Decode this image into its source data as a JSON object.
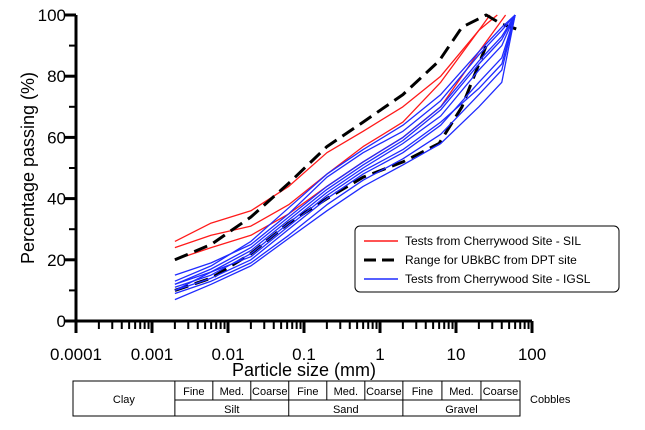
{
  "chart_data": {
    "type": "line",
    "title": "",
    "xlabel": "Particle size (mm)",
    "ylabel": "Percentage passing (%)",
    "x_scale": "log",
    "xlim": [
      0.0001,
      100
    ],
    "ylim": [
      0,
      100
    ],
    "x_tick_labels": [
      "0.0001",
      "0.001",
      "0.01",
      "0.1",
      "1",
      "10",
      "100"
    ],
    "y_tick_labels": [
      "0",
      "20",
      "40",
      "60",
      "80",
      "100"
    ],
    "grid": false,
    "legend_position": "lower-right",
    "series_colors": {
      "Tests from Cherrywood Site - SIL": "#ff1a1a",
      "Range for UBkBC from DPT site": "#000000",
      "Tests from Cherrywood Site - IGSL": "#1f2bff"
    },
    "series": [
      {
        "name": "Tests from Cherrywood Site - SIL",
        "style": "solid",
        "x": [
          0.002,
          0.006,
          0.02,
          0.063,
          0.2,
          0.6,
          2,
          6.3,
          20,
          28
        ],
        "y": [
          26,
          32,
          36,
          44,
          55,
          62,
          70,
          80,
          95,
          100
        ]
      },
      {
        "name": "Tests from Cherrywood Site - SIL",
        "style": "solid",
        "x": [
          0.002,
          0.006,
          0.02,
          0.063,
          0.2,
          0.6,
          2,
          6.3,
          20,
          35
        ],
        "y": [
          24,
          28,
          31,
          38,
          48,
          57,
          65,
          78,
          95,
          100
        ]
      },
      {
        "name": "Tests from Cherrywood Site - SIL",
        "style": "solid",
        "x": [
          0.002,
          0.006,
          0.02,
          0.063,
          0.2,
          0.6,
          2,
          6.3,
          20,
          45
        ],
        "y": [
          20,
          24,
          28,
          35,
          44,
          52,
          60,
          70,
          88,
          100
        ]
      },
      {
        "name": "Range for UBkBC from DPT site",
        "style": "dashed",
        "x": [
          0.002,
          0.006,
          0.02,
          0.063,
          0.2,
          0.6,
          2,
          6,
          12,
          25,
          40,
          70
        ],
        "y": [
          20,
          25,
          34,
          45,
          57,
          65,
          74,
          85,
          96,
          100,
          97,
          95
        ]
      },
      {
        "name": "Range for UBkBC from DPT site",
        "style": "dashed",
        "x": [
          0.002,
          0.006,
          0.02,
          0.063,
          0.2,
          0.6,
          2,
          6,
          12,
          25
        ],
        "y": [
          10,
          14,
          22,
          32,
          40,
          47,
          52,
          58,
          70,
          90
        ]
      },
      {
        "name": "Tests from Cherrywood Site - IGSL",
        "style": "solid",
        "x": [
          0.002,
          0.006,
          0.02,
          0.063,
          0.2,
          0.6,
          2,
          6.3,
          20,
          40,
          60
        ],
        "y": [
          15,
          19,
          25,
          35,
          47,
          55,
          62,
          72,
          87,
          95,
          100
        ]
      },
      {
        "name": "Tests from Cherrywood Site - IGSL",
        "style": "solid",
        "x": [
          0.002,
          0.006,
          0.02,
          0.063,
          0.2,
          0.6,
          2,
          6.3,
          20,
          40,
          60
        ],
        "y": [
          12,
          17,
          24,
          34,
          44,
          52,
          60,
          70,
          85,
          93,
          100
        ]
      },
      {
        "name": "Tests from Cherrywood Site - IGSL",
        "style": "solid",
        "x": [
          0.002,
          0.006,
          0.02,
          0.063,
          0.2,
          0.6,
          2,
          6.3,
          20,
          40,
          60
        ],
        "y": [
          11,
          15,
          22,
          32,
          42,
          50,
          58,
          67,
          82,
          90,
          100
        ]
      },
      {
        "name": "Tests from Cherrywood Site - IGSL",
        "style": "solid",
        "x": [
          0.002,
          0.006,
          0.02,
          0.063,
          0.2,
          0.6,
          2,
          6.3,
          20,
          40,
          60
        ],
        "y": [
          10,
          14,
          20,
          30,
          40,
          48,
          55,
          64,
          78,
          86,
          100
        ]
      },
      {
        "name": "Tests from Cherrywood Site - IGSL",
        "style": "solid",
        "x": [
          0.002,
          0.006,
          0.02,
          0.063,
          0.2,
          0.6,
          2,
          6.3,
          20,
          40,
          60
        ],
        "y": [
          9,
          13,
          19,
          28,
          38,
          46,
          53,
          61,
          74,
          82,
          100
        ]
      },
      {
        "name": "Tests from Cherrywood Site - IGSL",
        "style": "solid",
        "x": [
          0.002,
          0.006,
          0.02,
          0.063,
          0.2,
          0.6,
          2,
          6.3,
          20,
          40,
          60
        ],
        "y": [
          7,
          12,
          18,
          27,
          36,
          44,
          51,
          58,
          70,
          78,
          100
        ]
      },
      {
        "name": "Tests from Cherrywood Site - IGSL",
        "style": "solid",
        "x": [
          0.002,
          0.006,
          0.02,
          0.063,
          0.2,
          0.6,
          2,
          6.3,
          20,
          40,
          60
        ],
        "y": [
          13,
          18,
          26,
          37,
          48,
          56,
          64,
          74,
          88,
          96,
          100
        ]
      },
      {
        "name": "Tests from Cherrywood Site - IGSL",
        "style": "solid",
        "x": [
          0.002,
          0.006,
          0.02,
          0.063,
          0.2,
          0.6,
          2,
          6.3,
          20,
          40,
          60
        ],
        "y": [
          10,
          16,
          23,
          33,
          43,
          51,
          59,
          69,
          84,
          92,
          100
        ]
      },
      {
        "name": "Tests from Cherrywood Site - IGSL",
        "style": "solid",
        "x": [
          0.002,
          0.006,
          0.02,
          0.063,
          0.2,
          0.6,
          2,
          6.3,
          20,
          40,
          60
        ],
        "y": [
          12,
          16,
          21,
          31,
          41,
          49,
          56,
          65,
          76,
          84,
          100
        ]
      }
    ],
    "legend": [
      {
        "label": "Tests from Cherrywood Site - SIL",
        "style": "solid",
        "color": "#ff1a1a"
      },
      {
        "label": "Range for UBkBC from DPT site",
        "style": "dashed",
        "color": "#000000"
      },
      {
        "label": "Tests from Cherrywood Site - IGSL",
        "style": "solid",
        "color": "#1f2bff"
      }
    ],
    "classification": {
      "clay": "Clay",
      "cobbles": "Cobbles",
      "groups": [
        {
          "label": "Silt",
          "subs": [
            "Fine",
            "Med.",
            "Coarse"
          ]
        },
        {
          "label": "Sand",
          "subs": [
            "Fine",
            "Med.",
            "Coarse"
          ]
        },
        {
          "label": "Gravel",
          "subs": [
            "Fine",
            "Med.",
            "Coarse"
          ]
        }
      ]
    }
  }
}
